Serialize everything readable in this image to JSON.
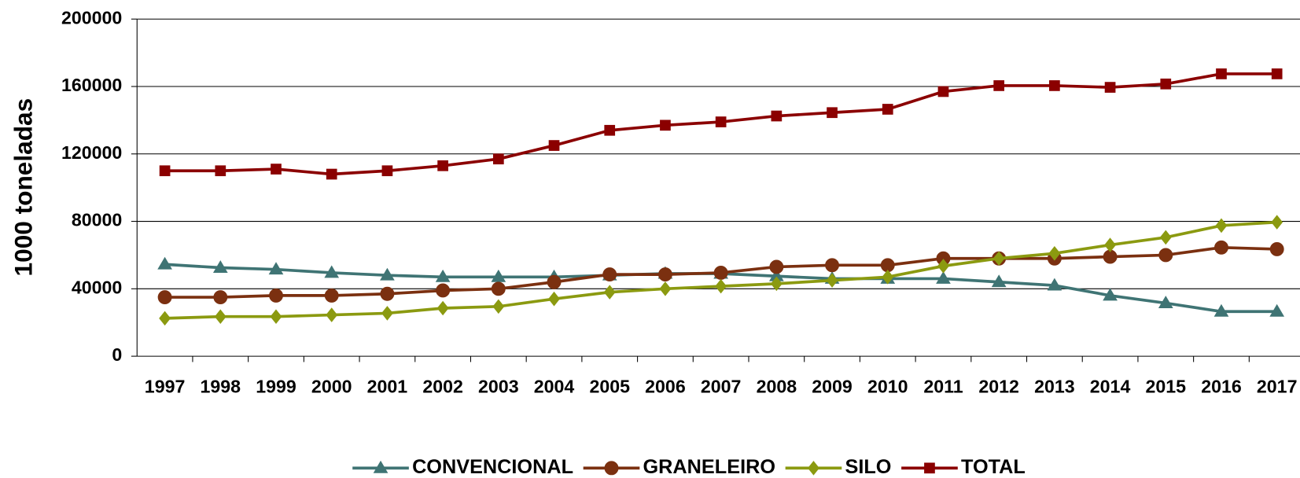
{
  "chart_data": {
    "type": "line",
    "y_label": "1000 toneladas",
    "categories": [
      "1997",
      "1998",
      "1999",
      "2000",
      "2001",
      "2002",
      "2003",
      "2004",
      "2005",
      "2006",
      "2007",
      "2008",
      "2009",
      "2010",
      "2011",
      "2012",
      "2013",
      "2014",
      "2015",
      "2016",
      "2017"
    ],
    "series": [
      {
        "name": "CONVENCIONAL",
        "color": "#3f7474",
        "marker": "triangle",
        "values": [
          54500,
          52500,
          51500,
          49500,
          48000,
          47000,
          47000,
          47000,
          48000,
          49000,
          49000,
          47500,
          46000,
          46000,
          46000,
          44000,
          42000,
          36000,
          31500,
          26500,
          26500
        ]
      },
      {
        "name": "GRANELEIRO",
        "color": "#7b3010",
        "marker": "circle",
        "values": [
          35000,
          35000,
          36000,
          36000,
          37000,
          39000,
          40000,
          44000,
          48500,
          48500,
          49500,
          53000,
          54000,
          54000,
          58000,
          58000,
          58000,
          59000,
          60000,
          64500,
          63500
        ]
      },
      {
        "name": "SILO",
        "color": "#8b9a10",
        "marker": "diamond",
        "values": [
          22500,
          23500,
          23500,
          24500,
          25500,
          28500,
          29500,
          34000,
          38000,
          40000,
          41500,
          43000,
          45000,
          47000,
          53500,
          58000,
          61000,
          66000,
          70500,
          77500,
          79500
        ]
      },
      {
        "name": "TOTAL",
        "color": "#8b0000",
        "marker": "square",
        "values": [
          110000,
          110000,
          111000,
          108000,
          110000,
          113000,
          117000,
          125000,
          134000,
          137000,
          139000,
          142500,
          144500,
          146500,
          157000,
          160500,
          160500,
          159500,
          161500,
          167500,
          167500
        ]
      }
    ],
    "ylim": [
      0,
      200000
    ],
    "yticks": [
      0,
      40000,
      80000,
      120000,
      160000,
      200000
    ],
    "grid": true,
    "legend": "bottom"
  }
}
